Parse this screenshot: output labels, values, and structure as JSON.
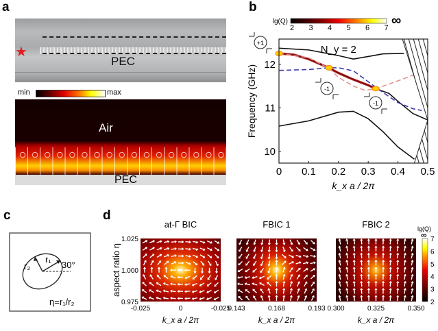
{
  "panel_a": {
    "label": "a",
    "photo_label": "PEC",
    "colorbar_min": "min",
    "colorbar_max": "max",
    "field_top_label": "Air",
    "field_bottom_label": "PEC",
    "star_color": "#e02020"
  },
  "panel_b": {
    "label": "b"
  },
  "panel_c": {
    "label": "c",
    "r1": "r₁",
    "r2": "r₂",
    "angle": "30°",
    "eq": "η=r₁/r₂"
  },
  "panel_d": {
    "label": "d"
  },
  "chart_data": [
    {
      "type": "line",
      "panel": "b",
      "annotation": "N_y = 2",
      "xlabel": "k_x a / 2π",
      "ylabel": "Frequency (GHz)",
      "xlim": [
        0,
        0.5
      ],
      "ylim": [
        9.73,
        12.58
      ],
      "xticks": [
        "0",
        "0.1",
        "0.2",
        "0.3",
        "0.4",
        "0.5"
      ],
      "yticks": [
        "10",
        "11",
        "12"
      ],
      "colorbar": {
        "label": "lg(Q)",
        "ticks": [
          "2",
          "3",
          "4",
          "5",
          "6",
          "7"
        ],
        "range": [
          2,
          7
        ],
        "end_label": "∞"
      },
      "mode_labels": [
        "+1",
        "-1",
        "-1"
      ],
      "series": [
        {
          "style": "solid-black",
          "x": [
            0,
            0.1,
            0.2,
            0.25,
            0.3,
            0.35,
            0.42
          ],
          "y": [
            12.37,
            12.33,
            12.2,
            12.12,
            12.18,
            12.24,
            12.25
          ]
        },
        {
          "style": "solid-black-Q",
          "x": [
            0,
            0.05,
            0.1,
            0.167,
            0.2,
            0.25,
            0.3,
            0.325,
            0.37,
            0.4,
            0.45,
            0.5
          ],
          "y": [
            12.25,
            12.22,
            12.12,
            11.92,
            11.8,
            11.65,
            11.52,
            11.44,
            11.33,
            11.15,
            10.87,
            10.72
          ]
        },
        {
          "style": "solid-black",
          "x": [
            0,
            0.1,
            0.2,
            0.25,
            0.3,
            0.35,
            0.4,
            0.455
          ],
          "y": [
            10.58,
            10.7,
            10.9,
            10.92,
            10.75,
            10.45,
            10.1,
            9.82
          ]
        },
        {
          "style": "dashed-blue",
          "x": [
            0,
            0.1,
            0.17,
            0.2,
            0.25,
            0.3,
            0.35,
            0.4,
            0.45,
            0.48
          ],
          "y": [
            11.86,
            11.88,
            11.92,
            11.92,
            11.85,
            11.6,
            11.35,
            11.12,
            10.98,
            10.94
          ]
        },
        {
          "style": "dashed-pink",
          "x": [
            0,
            0.1,
            0.17,
            0.2,
            0.25,
            0.29,
            0.33,
            0.4,
            0.45
          ],
          "y": [
            12.25,
            12.15,
            11.9,
            11.7,
            11.5,
            11.4,
            11.45,
            11.62,
            11.75
          ]
        }
      ],
      "bic_points": {
        "x": [
          0,
          0.168,
          0.325
        ],
        "y": [
          12.25,
          11.92,
          11.44
        ]
      },
      "colors": {
        "blue": "#3a3ab0",
        "pink": "#e89090"
      }
    },
    {
      "type": "heatmap",
      "panel": "d",
      "ylabel": "aspect  ratio η",
      "yticks": [
        "1.025",
        "1.000",
        "0.975"
      ],
      "colorbar": {
        "label": "lg(Q)",
        "ticks": [
          "7",
          "6",
          "5",
          "4",
          "3",
          "2"
        ],
        "end_label": "∞"
      },
      "maps": [
        {
          "title": "at-Γ BIC",
          "xticks": [
            "-0.025",
            "0",
            "-0.025"
          ],
          "xlabel": "k_x a / 2π",
          "peak_lgQ": 7,
          "pattern": "vortex"
        },
        {
          "title": "FBIC 1",
          "xticks": [
            "0.143",
            "0.168",
            "0.193"
          ],
          "xlabel": "k_x a / 2π",
          "peak_lgQ": 7,
          "pattern": "saddle"
        },
        {
          "title": "FBIC 2",
          "xticks": [
            "0.300",
            "0.325",
            "0.350"
          ],
          "xlabel": "k_x a / 2π",
          "peak_lgQ": 5.5,
          "pattern": "vertical"
        }
      ]
    }
  ]
}
